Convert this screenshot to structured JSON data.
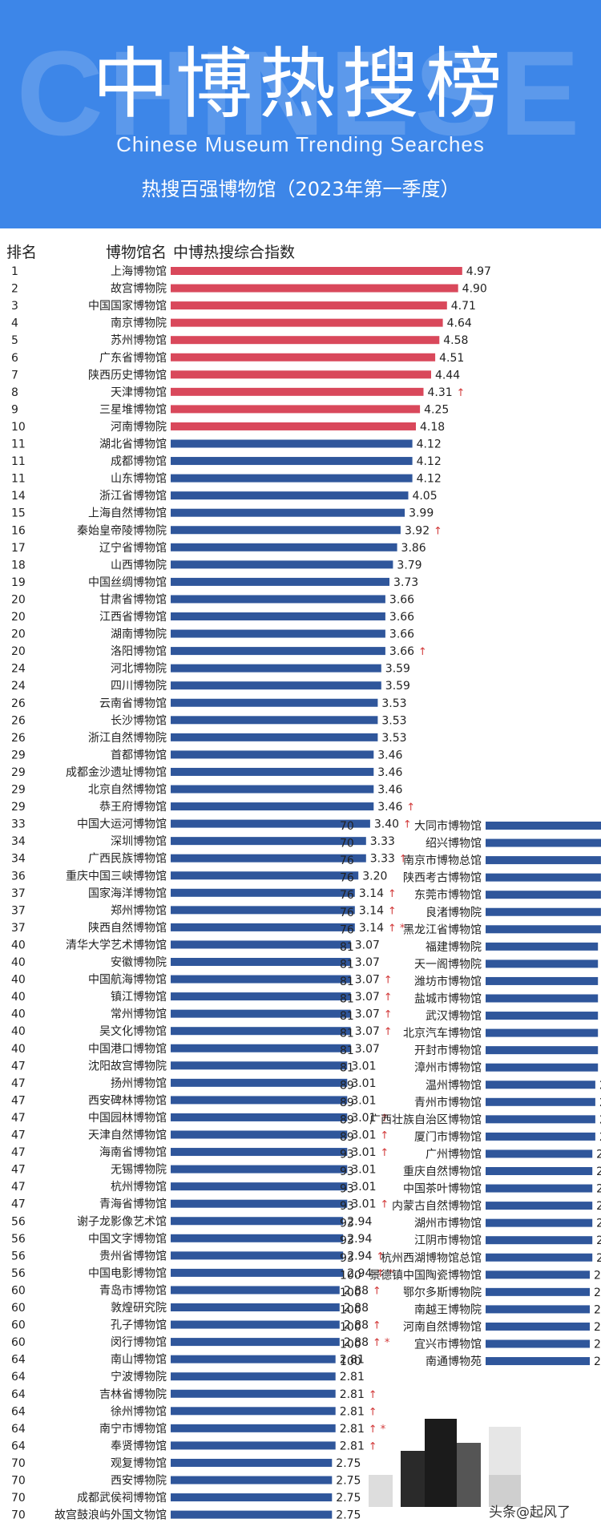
{
  "header": {
    "bg_word": "CHINESE",
    "title": "中博热搜榜",
    "subtitle_en": "Chinese Museum Trending Searches",
    "subtitle": "热搜百强博物馆（2023年第一季度）"
  },
  "columns": {
    "rank": "排名",
    "name": "博物馆名",
    "index": "中博热搜综合指数"
  },
  "colors": {
    "header_bg": "#3d86e8",
    "top10_bar": "#d9485b",
    "bar": "#2f569b",
    "mark": "#d23a3a"
  },
  "watermark": "头条@起风了",
  "chart_data": {
    "type": "bar",
    "title": "热搜百强博物馆（2023年第一季度）",
    "xlabel": "中博热搜综合指数",
    "ylabel": "博物馆名",
    "xlim": [
      0,
      5
    ],
    "legend": "none",
    "grid": false,
    "columns": [
      {
        "items": [
          {
            "rank": "1",
            "name": "上海博物馆",
            "value": 4.97,
            "label": "4.97",
            "flag": ""
          },
          {
            "rank": "2",
            "name": "故宫博物院",
            "value": 4.9,
            "label": "4.90",
            "flag": ""
          },
          {
            "rank": "3",
            "name": "中国国家博物馆",
            "value": 4.71,
            "label": "4.71",
            "flag": ""
          },
          {
            "rank": "4",
            "name": "南京博物院",
            "value": 4.64,
            "label": "4.64",
            "flag": ""
          },
          {
            "rank": "5",
            "name": "苏州博物馆",
            "value": 4.58,
            "label": "4.58",
            "flag": ""
          },
          {
            "rank": "6",
            "name": "广东省博物馆",
            "value": 4.51,
            "label": "4.51",
            "flag": ""
          },
          {
            "rank": "7",
            "name": "陕西历史博物馆",
            "value": 4.44,
            "label": "4.44",
            "flag": ""
          },
          {
            "rank": "8",
            "name": "天津博物馆",
            "value": 4.31,
            "label": "4.31",
            "flag": "↑"
          },
          {
            "rank": "9",
            "name": "三星堆博物馆",
            "value": 4.25,
            "label": "4.25",
            "flag": ""
          },
          {
            "rank": "10",
            "name": "河南博物院",
            "value": 4.18,
            "label": "4.18",
            "flag": ""
          },
          {
            "rank": "11",
            "name": "湖北省博物馆",
            "value": 4.12,
            "label": "4.12",
            "flag": ""
          },
          {
            "rank": "11",
            "name": "成都博物馆",
            "value": 4.12,
            "label": "4.12",
            "flag": ""
          },
          {
            "rank": "11",
            "name": "山东博物馆",
            "value": 4.12,
            "label": "4.12",
            "flag": ""
          },
          {
            "rank": "14",
            "name": "浙江省博物馆",
            "value": 4.05,
            "label": "4.05",
            "flag": ""
          },
          {
            "rank": "15",
            "name": "上海自然博物馆",
            "value": 3.99,
            "label": "3.99",
            "flag": ""
          },
          {
            "rank": "16",
            "name": "秦始皇帝陵博物院",
            "value": 3.92,
            "label": "3.92",
            "flag": "↑"
          },
          {
            "rank": "17",
            "name": "辽宁省博物馆",
            "value": 3.86,
            "label": "3.86",
            "flag": ""
          },
          {
            "rank": "18",
            "name": "山西博物院",
            "value": 3.79,
            "label": "3.79",
            "flag": ""
          },
          {
            "rank": "19",
            "name": "中国丝绸博物馆",
            "value": 3.73,
            "label": "3.73",
            "flag": ""
          },
          {
            "rank": "20",
            "name": "甘肃省博物馆",
            "value": 3.66,
            "label": "3.66",
            "flag": ""
          },
          {
            "rank": "20",
            "name": "江西省博物馆",
            "value": 3.66,
            "label": "3.66",
            "flag": ""
          },
          {
            "rank": "20",
            "name": "湖南博物院",
            "value": 3.66,
            "label": "3.66",
            "flag": ""
          },
          {
            "rank": "20",
            "name": "洛阳博物馆",
            "value": 3.66,
            "label": "3.66",
            "flag": "↑"
          },
          {
            "rank": "24",
            "name": "河北博物院",
            "value": 3.59,
            "label": "3.59",
            "flag": ""
          },
          {
            "rank": "24",
            "name": "四川博物院",
            "value": 3.59,
            "label": "3.59",
            "flag": ""
          },
          {
            "rank": "26",
            "name": "云南省博物馆",
            "value": 3.53,
            "label": "3.53",
            "flag": ""
          },
          {
            "rank": "26",
            "name": "长沙博物馆",
            "value": 3.53,
            "label": "3.53",
            "flag": ""
          },
          {
            "rank": "26",
            "name": "浙江自然博物院",
            "value": 3.53,
            "label": "3.53",
            "flag": ""
          },
          {
            "rank": "29",
            "name": "首都博物馆",
            "value": 3.46,
            "label": "3.46",
            "flag": ""
          },
          {
            "rank": "29",
            "name": "成都金沙遗址博物馆",
            "value": 3.46,
            "label": "3.46",
            "flag": ""
          },
          {
            "rank": "29",
            "name": "北京自然博物馆",
            "value": 3.46,
            "label": "3.46",
            "flag": ""
          },
          {
            "rank": "29",
            "name": "恭王府博物馆",
            "value": 3.46,
            "label": "3.46",
            "flag": "↑"
          },
          {
            "rank": "33",
            "name": "中国大运河博物馆",
            "value": 3.4,
            "label": "3.40",
            "flag": "↑"
          },
          {
            "rank": "34",
            "name": "深圳博物馆",
            "value": 3.33,
            "label": "3.33",
            "flag": ""
          },
          {
            "rank": "34",
            "name": "广西民族博物馆",
            "value": 3.33,
            "label": "3.33",
            "flag": "↑"
          },
          {
            "rank": "36",
            "name": "重庆中国三峡博物馆",
            "value": 3.2,
            "label": "3.20",
            "flag": ""
          },
          {
            "rank": "37",
            "name": "国家海洋博物馆",
            "value": 3.14,
            "label": "3.14",
            "flag": "↑"
          },
          {
            "rank": "37",
            "name": "郑州博物馆",
            "value": 3.14,
            "label": "3.14",
            "flag": "↑"
          },
          {
            "rank": "37",
            "name": "陕西自然博物馆",
            "value": 3.14,
            "label": "3.14",
            "flag": "↑ *"
          },
          {
            "rank": "40",
            "name": "清华大学艺术博物馆",
            "value": 3.07,
            "label": "3.07",
            "flag": ""
          },
          {
            "rank": "40",
            "name": "安徽博物院",
            "value": 3.07,
            "label": "3.07",
            "flag": ""
          },
          {
            "rank": "40",
            "name": "中国航海博物馆",
            "value": 3.07,
            "label": "3.07",
            "flag": "↑"
          },
          {
            "rank": "40",
            "name": "镇江博物馆",
            "value": 3.07,
            "label": "3.07",
            "flag": "↑"
          },
          {
            "rank": "40",
            "name": "常州博物馆",
            "value": 3.07,
            "label": "3.07",
            "flag": "↑"
          },
          {
            "rank": "40",
            "name": "吴文化博物馆",
            "value": 3.07,
            "label": "3.07",
            "flag": "↑"
          },
          {
            "rank": "40",
            "name": "中国港口博物馆",
            "value": 3.07,
            "label": "3.07",
            "flag": ""
          },
          {
            "rank": "47",
            "name": "沈阳故宫博物院",
            "value": 3.01,
            "label": "3.01",
            "flag": ""
          },
          {
            "rank": "47",
            "name": "扬州博物馆",
            "value": 3.01,
            "label": "3.01",
            "flag": ""
          },
          {
            "rank": "47",
            "name": "西安碑林博物馆",
            "value": 3.01,
            "label": "3.01",
            "flag": ""
          },
          {
            "rank": "47",
            "name": "中国园林博物馆",
            "value": 3.01,
            "label": "3.01",
            "flag": "↑"
          },
          {
            "rank": "47",
            "name": "天津自然博物馆",
            "value": 3.01,
            "label": "3.01",
            "flag": "↑"
          },
          {
            "rank": "47",
            "name": "海南省博物馆",
            "value": 3.01,
            "label": "3.01",
            "flag": "↑"
          },
          {
            "rank": "47",
            "name": "无锡博物院",
            "value": 3.01,
            "label": "3.01",
            "flag": ""
          },
          {
            "rank": "47",
            "name": "杭州博物馆",
            "value": 3.01,
            "label": "3.01",
            "flag": ""
          },
          {
            "rank": "47",
            "name": "青海省博物馆",
            "value": 3.01,
            "label": "3.01",
            "flag": "↑"
          },
          {
            "rank": "56",
            "name": "谢子龙影像艺术馆",
            "value": 2.94,
            "label": "2.94",
            "flag": ""
          },
          {
            "rank": "56",
            "name": "中国文字博物馆",
            "value": 2.94,
            "label": "2.94",
            "flag": ""
          },
          {
            "rank": "56",
            "name": "贵州省博物馆",
            "value": 2.94,
            "label": "2.94",
            "flag": "↑"
          },
          {
            "rank": "56",
            "name": "中国电影博物馆",
            "value": 2.94,
            "label": "2.94",
            "flag": "↑ *"
          },
          {
            "rank": "60",
            "name": "青岛市博物馆",
            "value": 2.88,
            "label": "2.88",
            "flag": "↑"
          },
          {
            "rank": "60",
            "name": "敦煌研究院",
            "value": 2.88,
            "label": "2.88",
            "flag": ""
          },
          {
            "rank": "60",
            "name": "孔子博物馆",
            "value": 2.88,
            "label": "2.88",
            "flag": "↑"
          },
          {
            "rank": "60",
            "name": "闵行博物馆",
            "value": 2.88,
            "label": "2.88",
            "flag": "↑ *"
          },
          {
            "rank": "64",
            "name": "南山博物馆",
            "value": 2.81,
            "label": "2.81",
            "flag": ""
          },
          {
            "rank": "64",
            "name": "宁波博物院",
            "value": 2.81,
            "label": "2.81",
            "flag": ""
          },
          {
            "rank": "64",
            "name": "吉林省博物院",
            "value": 2.81,
            "label": "2.81",
            "flag": "↑"
          },
          {
            "rank": "64",
            "name": "徐州博物馆",
            "value": 2.81,
            "label": "2.81",
            "flag": "↑"
          },
          {
            "rank": "64",
            "name": "南宁市博物馆",
            "value": 2.81,
            "label": "2.81",
            "flag": "↑ *"
          },
          {
            "rank": "64",
            "name": "奉贤博物馆",
            "value": 2.81,
            "label": "2.81",
            "flag": "↑"
          },
          {
            "rank": "70",
            "name": "观复博物馆",
            "value": 2.75,
            "label": "2.75",
            "flag": ""
          },
          {
            "rank": "70",
            "name": "西安博物院",
            "value": 2.75,
            "label": "2.75",
            "flag": ""
          },
          {
            "rank": "70",
            "name": "成都武侯祠博物馆",
            "value": 2.75,
            "label": "2.75",
            "flag": ""
          },
          {
            "rank": "70",
            "name": "故宫鼓浪屿外国文物馆",
            "value": 2.75,
            "label": "2.75",
            "flag": ""
          }
        ]
      },
      {
        "items": [
          {
            "rank": "70",
            "name": "大同市博物馆",
            "value": 2.75,
            "label": "2.75",
            "flag": "↑ *"
          },
          {
            "rank": "70",
            "name": "绍兴博物馆",
            "value": 2.75,
            "label": "2.75",
            "flag": "↑"
          },
          {
            "rank": "76",
            "name": "南京市博物总馆",
            "value": 2.68,
            "label": "2.68",
            "flag": ""
          },
          {
            "rank": "76",
            "name": "陕西考古博物馆",
            "value": 2.68,
            "label": "2.68",
            "flag": "↑ *"
          },
          {
            "rank": "76",
            "name": "东莞市博物馆",
            "value": 2.68,
            "label": "2.68",
            "flag": ""
          },
          {
            "rank": "76",
            "name": "良渚博物院",
            "value": 2.68,
            "label": "2.68",
            "flag": ""
          },
          {
            "rank": "76",
            "name": "黑龙江省博物馆",
            "value": 2.68,
            "label": "2.68",
            "flag": "↑ *"
          },
          {
            "rank": "81",
            "name": "福建博物院",
            "value": 2.61,
            "label": "2.61",
            "flag": ""
          },
          {
            "rank": "81",
            "name": "天一阁博物院",
            "value": 2.61,
            "label": "2.61",
            "flag": ""
          },
          {
            "rank": "81",
            "name": "潍坊市博物馆",
            "value": 2.61,
            "label": "2.61",
            "flag": ""
          },
          {
            "rank": "81",
            "name": "盐城市博物馆",
            "value": 2.61,
            "label": "2.61",
            "flag": ""
          },
          {
            "rank": "81",
            "name": "武汉博物馆",
            "value": 2.61,
            "label": "2.61",
            "flag": ""
          },
          {
            "rank": "81",
            "name": "北京汽车博物馆",
            "value": 2.61,
            "label": "2.61",
            "flag": ""
          },
          {
            "rank": "81",
            "name": "开封市博物馆",
            "value": 2.61,
            "label": "2.61",
            "flag": "↑ *"
          },
          {
            "rank": "81",
            "name": "漳州市博物馆",
            "value": 2.61,
            "label": "2.61",
            "flag": ""
          },
          {
            "rank": "89",
            "name": "温州博物馆",
            "value": 2.55,
            "label": "2.55",
            "flag": ""
          },
          {
            "rank": "89",
            "name": "青州市博物馆",
            "value": 2.55,
            "label": "2.55",
            "flag": "↑ *"
          },
          {
            "rank": "89",
            "name": "广西壮族自治区博物馆",
            "value": 2.55,
            "label": "2.55",
            "flag": ""
          },
          {
            "rank": "89",
            "name": "厦门市博物馆",
            "value": 2.55,
            "label": "2.55",
            "flag": "↑ *"
          },
          {
            "rank": "93",
            "name": "广州博物馆",
            "value": 2.48,
            "label": "2.48",
            "flag": ""
          },
          {
            "rank": "93",
            "name": "重庆自然博物馆",
            "value": 2.48,
            "label": "2.48",
            "flag": ""
          },
          {
            "rank": "93",
            "name": "中国茶叶博物馆",
            "value": 2.48,
            "label": "2.48",
            "flag": ""
          },
          {
            "rank": "93",
            "name": "内蒙古自然博物馆",
            "value": 2.48,
            "label": "2.48",
            "flag": ""
          },
          {
            "rank": "93",
            "name": "湖州市博物馆",
            "value": 2.48,
            "label": "2.48",
            "flag": ""
          },
          {
            "rank": "93",
            "name": "江阴市博物馆",
            "value": 2.48,
            "label": "2.48",
            "flag": ""
          },
          {
            "rank": "93",
            "name": "杭州西湖博物馆总馆",
            "value": 2.48,
            "label": "2.48",
            "flag": ""
          },
          {
            "rank": "100",
            "name": "景德镇中国陶瓷博物馆",
            "value": 2.42,
            "label": "2.42",
            "flag": ""
          },
          {
            "rank": "100",
            "name": "鄂尔多斯博物院",
            "value": 2.42,
            "label": "2.42",
            "flag": ""
          },
          {
            "rank": "100",
            "name": "南越王博物院",
            "value": 2.42,
            "label": "2.42",
            "flag": ""
          },
          {
            "rank": "100",
            "name": "河南自然博物馆",
            "value": 2.42,
            "label": "2.42",
            "flag": ""
          },
          {
            "rank": "100",
            "name": "宜兴市博物馆",
            "value": 2.42,
            "label": "2.42",
            "flag": ""
          },
          {
            "rank": "100",
            "name": "南通博物苑",
            "value": 2.42,
            "label": "2.42",
            "flag": ""
          }
        ]
      }
    ]
  }
}
